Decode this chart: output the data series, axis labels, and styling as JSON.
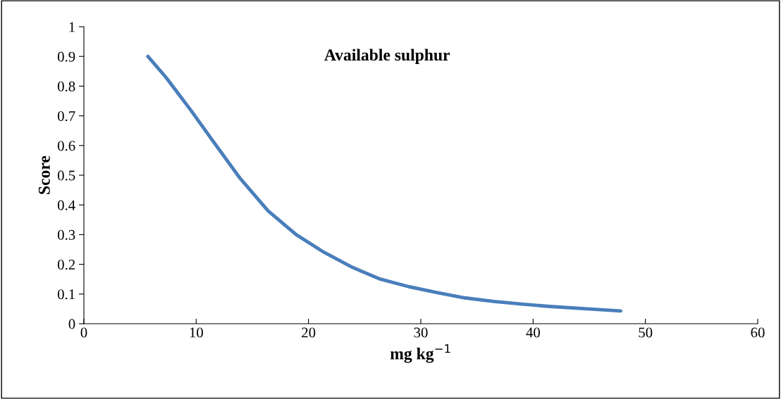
{
  "chart_data": {
    "type": "line",
    "title": "Available sulphur",
    "xlabel": "mg kg$^{−1}$",
    "ylabel": "Score",
    "series": [
      {
        "color": "#4a7ebb",
        "x": [
          5.7,
          7.3,
          9.5,
          11.4,
          13.9,
          16.4,
          18.9,
          21.4,
          23.9,
          26.4,
          28.9,
          31.4,
          33.9,
          36.5,
          39,
          41.5,
          45.3,
          47.8
        ],
        "values": [
          0.9,
          0.83,
          0.72,
          0.62,
          0.49,
          0.38,
          0.3,
          0.24,
          0.19,
          0.15,
          0.125,
          0.105,
          0.087,
          0.075,
          0.066,
          0.058,
          0.049,
          0.043
        ]
      }
    ],
    "xlim": [
      0,
      60
    ],
    "xticks": [
      0,
      10,
      20,
      30,
      40,
      50,
      60
    ],
    "ylim": [
      0,
      1
    ],
    "yticks": [
      0,
      0.1,
      0.2,
      0.3,
      0.4,
      0.5,
      0.6,
      0.7,
      0.8,
      0.9,
      1
    ],
    "grid": false,
    "legend": false,
    "marker": "none",
    "line_style": "solid"
  }
}
